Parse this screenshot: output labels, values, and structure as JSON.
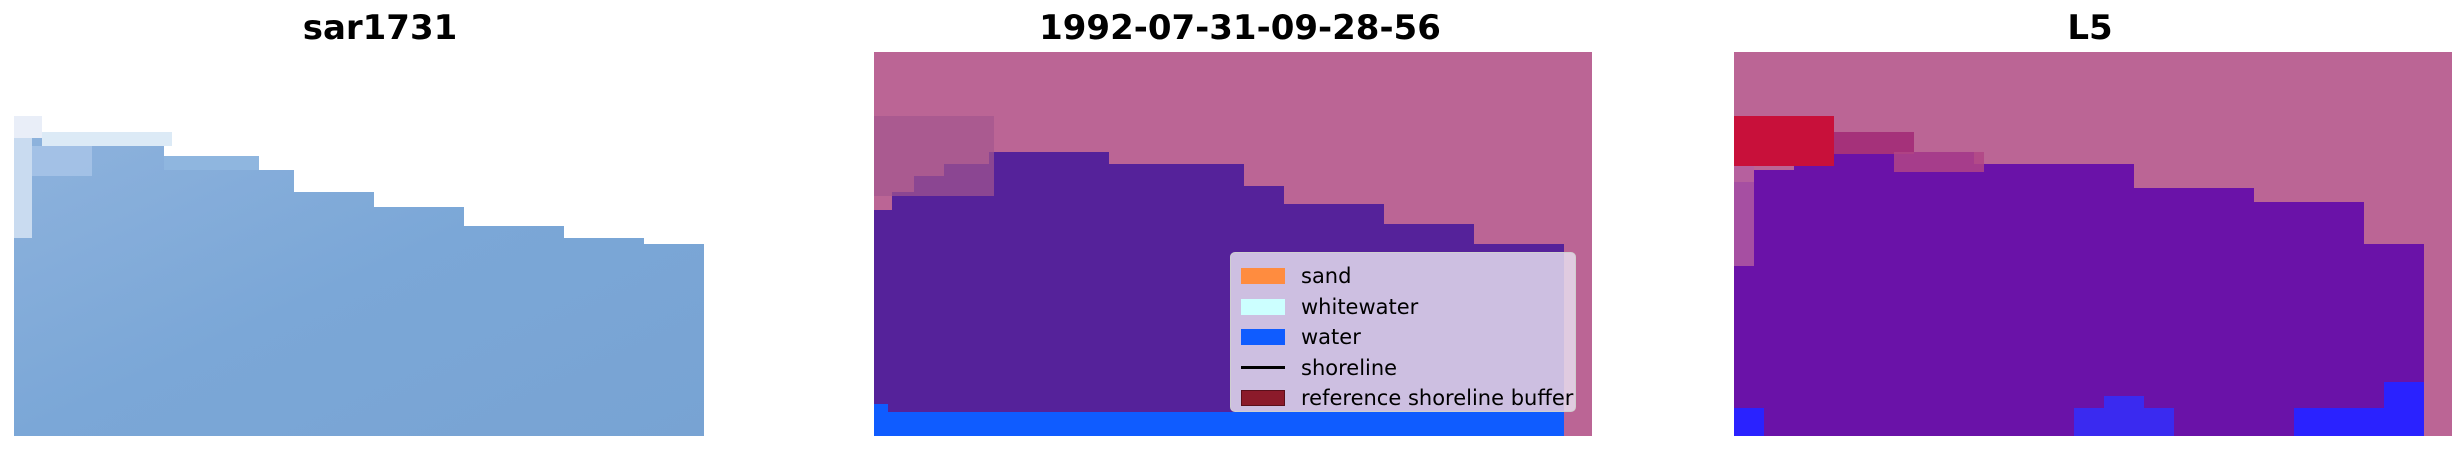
{
  "panels": [
    {
      "title": "sar1731"
    },
    {
      "title": "1992-07-31-09-28-56"
    },
    {
      "title": "L5"
    }
  ],
  "legend": {
    "items": [
      {
        "label": "sand",
        "color": "#ff8c3f",
        "kind": "patch"
      },
      {
        "label": "whitewater",
        "color": "#ccffff",
        "kind": "patch"
      },
      {
        "label": "water",
        "color": "#0f5cff",
        "kind": "patch"
      },
      {
        "label": "shoreline",
        "color": "#000000",
        "kind": "line"
      },
      {
        "label": "reference shoreline buffer",
        "color": "#8b1a2a",
        "kind": "patch"
      }
    ]
  },
  "colors": {
    "land_overlay": "#bb6595",
    "water_class": "#55229a",
    "rgb_water": "#7aa6d6",
    "l5_water": "#6a12a8",
    "l5_red": "#c8103a"
  }
}
